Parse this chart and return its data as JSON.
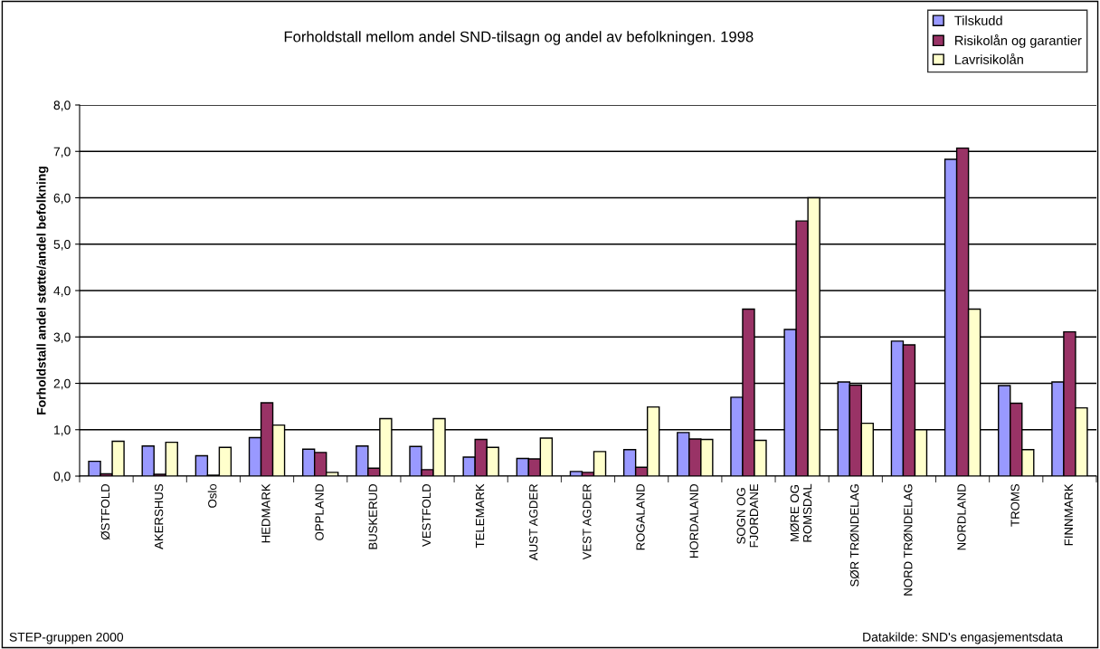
{
  "chart_data": {
    "type": "bar",
    "title": "Forholdstall mellom andel SND-tilsagn og andel av befolkningen. 1998",
    "ylabel": "Forholdstall andel støtte/andel befolkning",
    "categories": [
      "ØSTFOLD",
      "AKERSHUS",
      "Oslo",
      "HEDMARK",
      "OPPLAND",
      "BUSKERUD",
      "VESTFOLD",
      "TELEMARK",
      "AUST AGDER",
      "VEST AGDER",
      "ROGALAND",
      "HORDALAND",
      "SOGN OG\nFJORDANE",
      "MØRE OG\nROMSDAL",
      "SØR TRØNDELAG",
      "NORD TRØNDELAG",
      "NORDLAND",
      "TROMS",
      "FINNMARK"
    ],
    "series": [
      {
        "name": "Tilskudd",
        "color": "#9999ff",
        "values": [
          0.32,
          0.65,
          0.44,
          0.83,
          0.58,
          0.65,
          0.64,
          0.41,
          0.38,
          0.1,
          0.57,
          0.94,
          1.7,
          3.16,
          2.03,
          2.91,
          6.83,
          1.95,
          2.03
        ]
      },
      {
        "name": "Risikolån og garantier",
        "color": "#993366",
        "values": [
          0.05,
          0.04,
          0.02,
          1.58,
          0.51,
          0.17,
          0.14,
          0.79,
          0.37,
          0.08,
          0.19,
          0.8,
          3.6,
          5.5,
          1.96,
          2.83,
          7.07,
          1.57,
          3.11
        ]
      },
      {
        "name": "Lavrisikolån",
        "color": "#ffffcc",
        "values": [
          0.75,
          0.73,
          0.62,
          1.1,
          0.08,
          1.24,
          1.24,
          0.62,
          0.82,
          0.53,
          1.49,
          0.79,
          0.77,
          6.0,
          1.14,
          1.0,
          3.6,
          0.57,
          1.47
        ]
      }
    ],
    "ylim": [
      0,
      8
    ],
    "yticks": [
      {
        "value": 0,
        "label": "0,0"
      },
      {
        "value": 1,
        "label": "1,0"
      },
      {
        "value": 2,
        "label": "2,0"
      },
      {
        "value": 3,
        "label": "3,0"
      },
      {
        "value": 4,
        "label": "4,0"
      },
      {
        "value": 5,
        "label": "5,0"
      },
      {
        "value": 6,
        "label": "6,0"
      },
      {
        "value": 7,
        "label": "7,0"
      },
      {
        "value": 8,
        "label": "8,0"
      }
    ],
    "grid": "y",
    "legend": "top right",
    "annotations": [
      "STEP-gruppen 2000",
      "Datakilde: SND's engasjementsdata"
    ]
  }
}
